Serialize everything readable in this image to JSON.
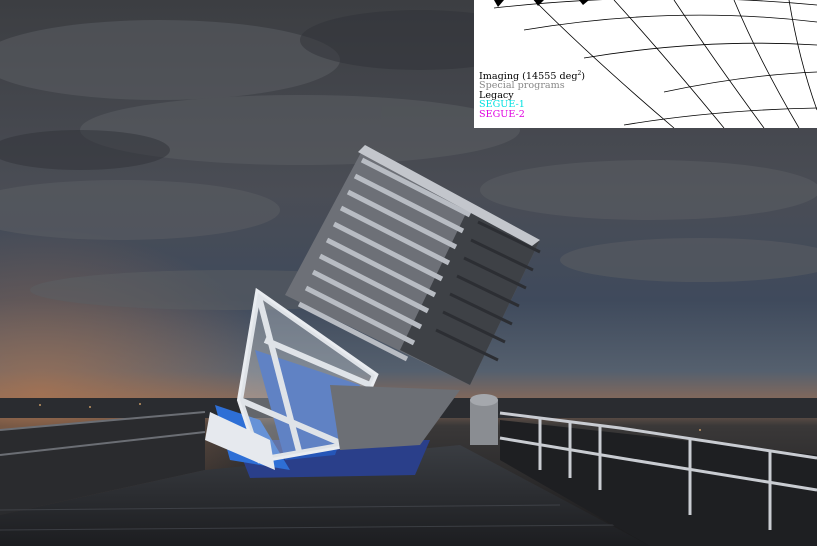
{
  "legend": {
    "imaging_prefix": "Imaging (14555 deg",
    "imaging_sup": "2",
    "imaging_suffix": ")",
    "special": "Special programs",
    "legacy": "Legacy",
    "segue1": "SEGUE-1",
    "segue2": "SEGUE-2"
  },
  "colors": {
    "imaging": "#000000",
    "special": "#888888",
    "legacy": "#000000",
    "segue1": "#00e0e0",
    "segue2": "#e000e0"
  }
}
